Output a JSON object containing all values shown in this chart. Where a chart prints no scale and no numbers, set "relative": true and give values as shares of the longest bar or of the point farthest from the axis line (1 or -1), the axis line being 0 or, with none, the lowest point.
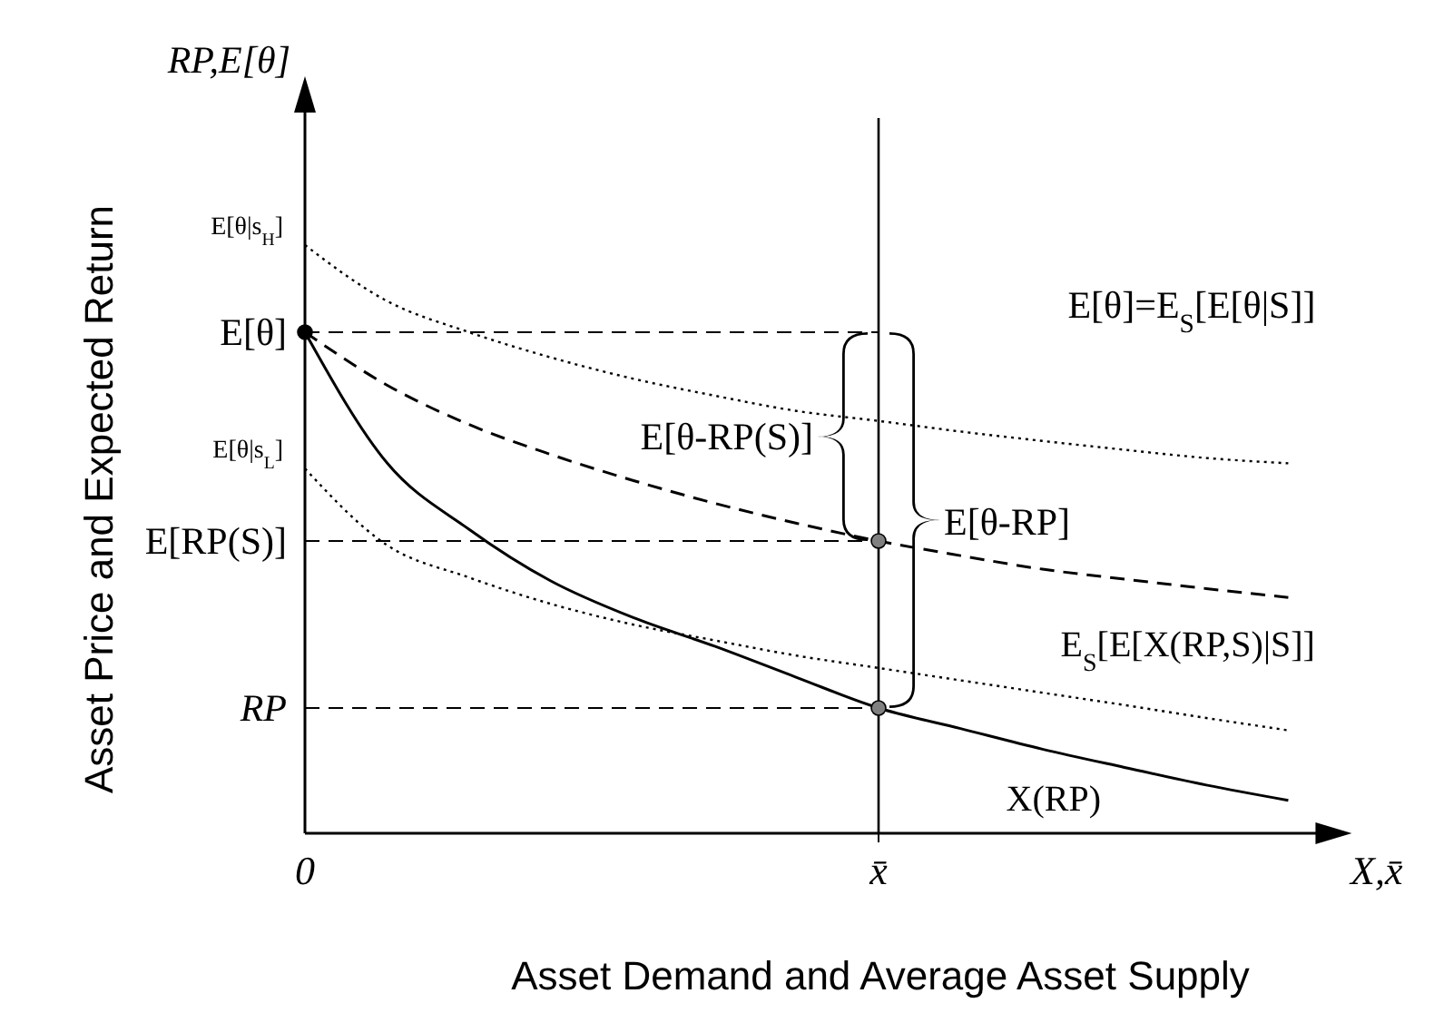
{
  "chart_data": {
    "type": "line",
    "relative": true,
    "xlabel": "Asset Demand and Average Asset Supply",
    "ylabel": "Asset Price and Expected Return",
    "categories": [
      "0",
      null,
      null,
      null,
      null,
      null,
      null,
      "x̄",
      null,
      null,
      null,
      null,
      null
    ],
    "series": [
      {
        "name": "X(RP)",
        "color": "#000000",
        "line_style": "solid",
        "values": [
          0.852,
          0.63,
          0.517,
          0.429,
          0.367,
          0.318,
          0.265,
          0.213,
          0.178,
          0.143,
          0.112,
          0.082,
          0.056
        ]
      },
      {
        "name": "E$_{S}$[E[X(RP,S)|S]]",
        "color": "#000000",
        "line_style": "dashed",
        "values": [
          0.852,
          0.762,
          0.695,
          0.644,
          0.6,
          0.561,
          0.527,
          0.497,
          0.472,
          0.449,
          0.432,
          0.416,
          0.401
        ]
      },
      {
        "color": "#000000",
        "line_style": "dotted",
        "values": [
          1.0,
          0.905,
          0.852,
          0.809,
          0.773,
          0.744,
          0.718,
          0.701,
          0.683,
          0.667,
          0.652,
          0.638,
          0.629
        ]
      },
      {
        "color": "#000000",
        "line_style": "dotted",
        "values": [
          0.62,
          0.49,
          0.435,
          0.39,
          0.355,
          0.328,
          0.302,
          0.281,
          0.26,
          0.239,
          0.218,
          0.196,
          0.175
        ]
      },
      {
        "type": "scatter",
        "marker": "circle",
        "color": "#000000",
        "x": [
          "0"
        ],
        "values": [
          0.852
        ]
      },
      {
        "type": "scatter",
        "marker": "circle",
        "color": "#808080",
        "x": [
          "x̄",
          "x̄"
        ],
        "values": [
          0.497,
          0.213
        ]
      }
    ],
    "ref_lines": [
      {
        "axis": "y",
        "value": 0.852,
        "label": "E[θ]",
        "line_style": "dashed"
      },
      {
        "axis": "y",
        "value": 0.497,
        "label": "E[RP(S)]",
        "line_style": "dashed"
      },
      {
        "axis": "y",
        "value": 0.213,
        "label": "RP",
        "line_style": "dashed"
      },
      {
        "axis": "x",
        "value": "x̄",
        "line_style": "solid"
      }
    ],
    "annotations": [
      "RP,E[θ]",
      "X,x̄",
      "E[θ]=E$_{S}$[E[θ|S]]",
      {
        "text": "E[θ|s$_{H}$]",
        "x": "0",
        "y": 1.0
      },
      {
        "text": "E[θ|s$_{L}$]",
        "x": "0",
        "y": 0.62
      },
      {
        "text": "E[θ-RP(S)]",
        "x": "x̄",
        "y": 0.675
      },
      {
        "text": "E[θ-RP]",
        "x": "x̄",
        "y": 0.53
      }
    ]
  }
}
